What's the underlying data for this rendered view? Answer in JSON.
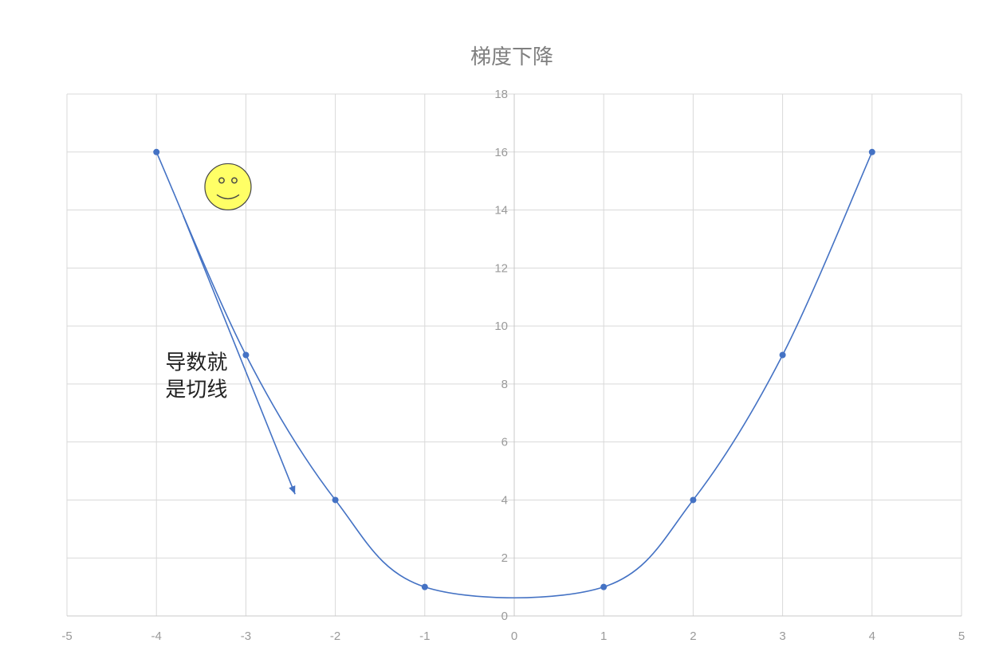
{
  "chart_data": {
    "type": "scatter",
    "title": "梯度下降",
    "xlabel": "",
    "ylabel": "",
    "xlim": [
      -5,
      5
    ],
    "ylim": [
      0,
      18
    ],
    "x_ticks": [
      "-5",
      "-4",
      "-3",
      "-2",
      "-1",
      "0",
      "1",
      "2",
      "3",
      "4",
      "5"
    ],
    "y_ticks": [
      "0",
      "2",
      "4",
      "6",
      "8",
      "10",
      "12",
      "14",
      "16",
      "18"
    ],
    "grid": true,
    "line_style": "smoothed",
    "series": [
      {
        "x": [
          -4,
          -3,
          -2,
          -1,
          1,
          2,
          3,
          4
        ],
        "y": [
          16,
          9,
          4,
          1,
          1,
          4,
          9,
          16
        ],
        "color": "#4472c4"
      }
    ],
    "annotations": [
      {
        "type": "text",
        "lines": [
          "导数就",
          "是切线"
        ],
        "x": -3.9,
        "y": 8.5,
        "color": "#222222"
      },
      {
        "type": "arrow",
        "from": [
          -3.7,
          13.8
        ],
        "to": [
          -2.45,
          4.2
        ],
        "color": "#4472c4"
      },
      {
        "type": "smiley",
        "x": -3.2,
        "y": 14.8,
        "color": "#ffff66"
      }
    ]
  }
}
